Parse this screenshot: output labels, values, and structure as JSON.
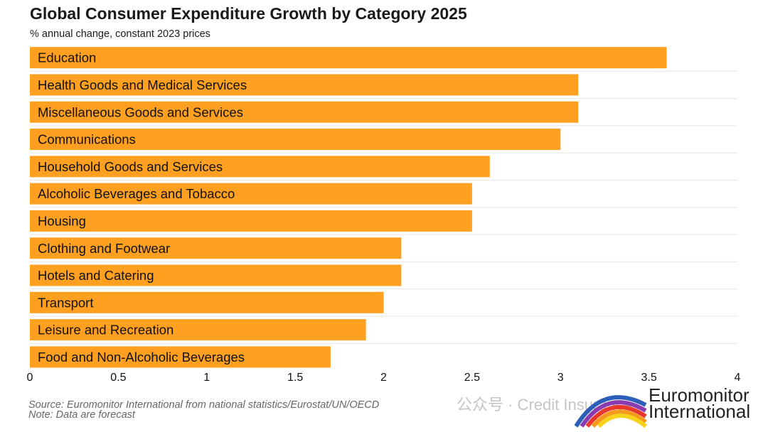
{
  "header": {
    "title": "Global Consumer Expenditure Growth by Category 2025",
    "subtitle": "% annual change, constant 2023 prices"
  },
  "footer": {
    "source": "Source: Euromonitor International from national statistics/Eurostat/UN/OECD",
    "note": "Note: Data are forecast",
    "watermark": "公众号 · Credit Insurance",
    "logo_line1": "Euromonitor",
    "logo_line2": "International"
  },
  "colors": {
    "bar": "#FFA020",
    "grid": "#e6e6e6",
    "text": "#111111"
  },
  "chart_data": {
    "type": "bar",
    "orientation": "horizontal",
    "title": "Global Consumer Expenditure Growth by Category 2025",
    "subtitle": "% annual change, constant 2023 prices",
    "categories": [
      "Education",
      "Health Goods and Medical Services",
      "Miscellaneous Goods and Services",
      "Communications",
      "Household Goods and Services",
      "Alcoholic Beverages and Tobacco",
      "Housing",
      "Clothing and Footwear",
      "Hotels and Catering",
      "Transport",
      "Leisure and Recreation",
      "Food and Non-Alcoholic Beverages"
    ],
    "values": [
      3.6,
      3.1,
      3.1,
      3.0,
      2.6,
      2.5,
      2.5,
      2.1,
      2.1,
      2.0,
      1.9,
      1.7
    ],
    "xlim": [
      0,
      4
    ],
    "xticks": [
      "0",
      "0.5",
      "1",
      "1.5",
      "2",
      "2.5",
      "3",
      "3.5",
      "4"
    ],
    "xlabel": "",
    "ylabel": "",
    "grid": "horizontal separators",
    "legend": "none"
  }
}
